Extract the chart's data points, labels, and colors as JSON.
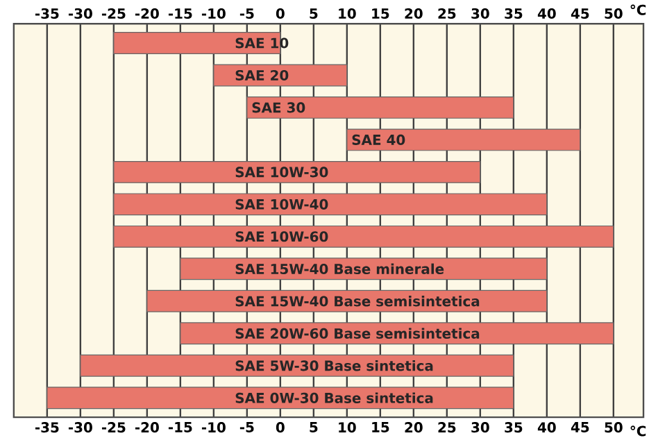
{
  "chart_data": {
    "type": "bar",
    "orientation": "horizontal",
    "xlabel": "°C",
    "x2label": "°C",
    "categories": [
      "SAE 10",
      "SAE 20",
      "SAE 30",
      "SAE 40",
      "SAE 10W-30",
      "SAE 10W-40",
      "SAE 10W-60",
      "SAE 15W-40 Base minerale",
      "SAE 15W-40 Base semisintetica",
      "SAE 20W-60 Base semisintetica",
      "SAE 5W-30 Base sintetica",
      "SAE 0W-30 Base sintetica"
    ],
    "base": [
      -25,
      -10,
      -5,
      10,
      -25,
      -25,
      -25,
      -15,
      -20,
      -15,
      -30,
      -35
    ],
    "values": [
      25,
      20,
      40,
      35,
      55,
      65,
      75,
      55,
      60,
      65,
      65,
      70
    ],
    "color": "#e8776b",
    "xlim": [
      -40,
      54.5
    ],
    "xticks": [
      -35,
      -30,
      -25,
      -20,
      -15,
      -10,
      -5,
      0,
      5,
      10,
      15,
      20,
      25,
      30,
      35,
      40,
      45,
      50
    ],
    "x2lim": [
      -40,
      54.5
    ],
    "x2ticks": [
      -35,
      -30,
      -25,
      -20,
      -15,
      -10,
      -5,
      0,
      5,
      10,
      15,
      20,
      25,
      30,
      35,
      40,
      45,
      50
    ],
    "grid": "x",
    "tick_labels": "x"
  }
}
